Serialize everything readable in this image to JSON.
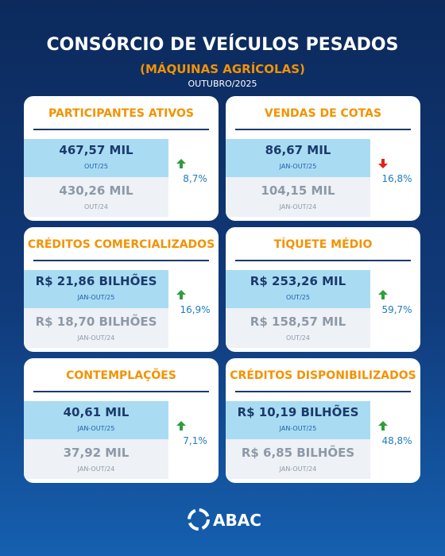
{
  "header": {
    "title": "CONSÓRCIO DE VEÍCULOS PESADOS",
    "subtitle": "(MÁQUINAS AGRÍCOLAS)",
    "date": "OUTUBRO/2025"
  },
  "cards": [
    {
      "title": "PARTICIPANTES ATIVOS",
      "current": "467,57 MIL",
      "current_period": "OUT/25",
      "previous": "430,26 MIL",
      "previous_period": "OUT/24",
      "change": "8,7%",
      "trend": "up"
    },
    {
      "title": "VENDAS DE COTAS",
      "current": "86,67 MIL",
      "current_period": "JAN-OUT/25",
      "previous": "104,15 MIL",
      "previous_period": "JAN-OUT/24",
      "change": "16,8%",
      "trend": "down"
    },
    {
      "title": "CRÉDITOS COMERCIALIZADOS",
      "current": "R$ 21,86 BILHÕES",
      "current_period": "JAN-OUT/25",
      "previous": "R$ 18,70 BILHÕES",
      "previous_period": "JAN-OUT/24",
      "change": "16,9%",
      "trend": "up"
    },
    {
      "title": "TÍQUETE MÉDIO",
      "current": "R$ 253,26 MIL",
      "current_period": "OUT/25",
      "previous": "R$ 158,57 MIL",
      "previous_period": "OUT/24",
      "change": "59,7%",
      "trend": "up"
    },
    {
      "title": "CONTEMPLAÇÕES",
      "current": "40,61 MIL",
      "current_period": "JAN-OUT/25",
      "previous": "37,92 MIL",
      "previous_period": "JAN-OUT/24",
      "change": "7,1%",
      "trend": "up"
    },
    {
      "title": "CRÉDITOS DISPONIBILIZADOS",
      "current": "R$ 10,19 BILHÕES",
      "current_period": "JAN-OUT/25",
      "previous": "R$ 6,85 BILHÕES",
      "previous_period": "JAN-OUT/24",
      "change": "48,8%",
      "trend": "up"
    }
  ],
  "footer": {
    "brand": "ABAC"
  }
}
